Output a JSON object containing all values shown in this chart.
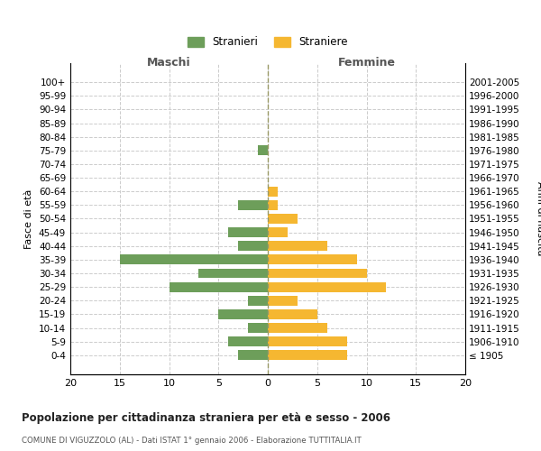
{
  "age_groups": [
    "100+",
    "95-99",
    "90-94",
    "85-89",
    "80-84",
    "75-79",
    "70-74",
    "65-69",
    "60-64",
    "55-59",
    "50-54",
    "45-49",
    "40-44",
    "35-39",
    "30-34",
    "25-29",
    "20-24",
    "15-19",
    "10-14",
    "5-9",
    "0-4"
  ],
  "birth_years": [
    "≤ 1905",
    "1906-1910",
    "1911-1915",
    "1916-1920",
    "1921-1925",
    "1926-1930",
    "1931-1935",
    "1936-1940",
    "1941-1945",
    "1946-1950",
    "1951-1955",
    "1956-1960",
    "1961-1965",
    "1966-1970",
    "1971-1975",
    "1976-1980",
    "1981-1985",
    "1986-1990",
    "1991-1995",
    "1996-2000",
    "2001-2005"
  ],
  "maschi": [
    0,
    0,
    0,
    0,
    0,
    1,
    0,
    0,
    0,
    3,
    0,
    4,
    3,
    15,
    7,
    10,
    2,
    5,
    2,
    4,
    3
  ],
  "femmine": [
    0,
    0,
    0,
    0,
    0,
    0,
    0,
    0,
    1,
    1,
    3,
    2,
    6,
    9,
    10,
    12,
    3,
    5,
    6,
    8,
    8
  ],
  "color_maschi": "#6d9e5a",
  "color_femmine": "#f5b731",
  "title": "Popolazione per cittadinanza straniera per età e sesso - 2006",
  "subtitle": "COMUNE DI VIGUZZOLO (AL) - Dati ISTAT 1° gennaio 2006 - Elaborazione TUTTITALIA.IT",
  "ylabel_left": "Fasce di età",
  "ylabel_right": "Anni di nascita",
  "xlabel_maschi": "Maschi",
  "xlabel_femmine": "Femmine",
  "legend_maschi": "Stranieri",
  "legend_femmine": "Straniere",
  "xlim": 20,
  "background_color": "#ffffff",
  "grid_color": "#cccccc"
}
